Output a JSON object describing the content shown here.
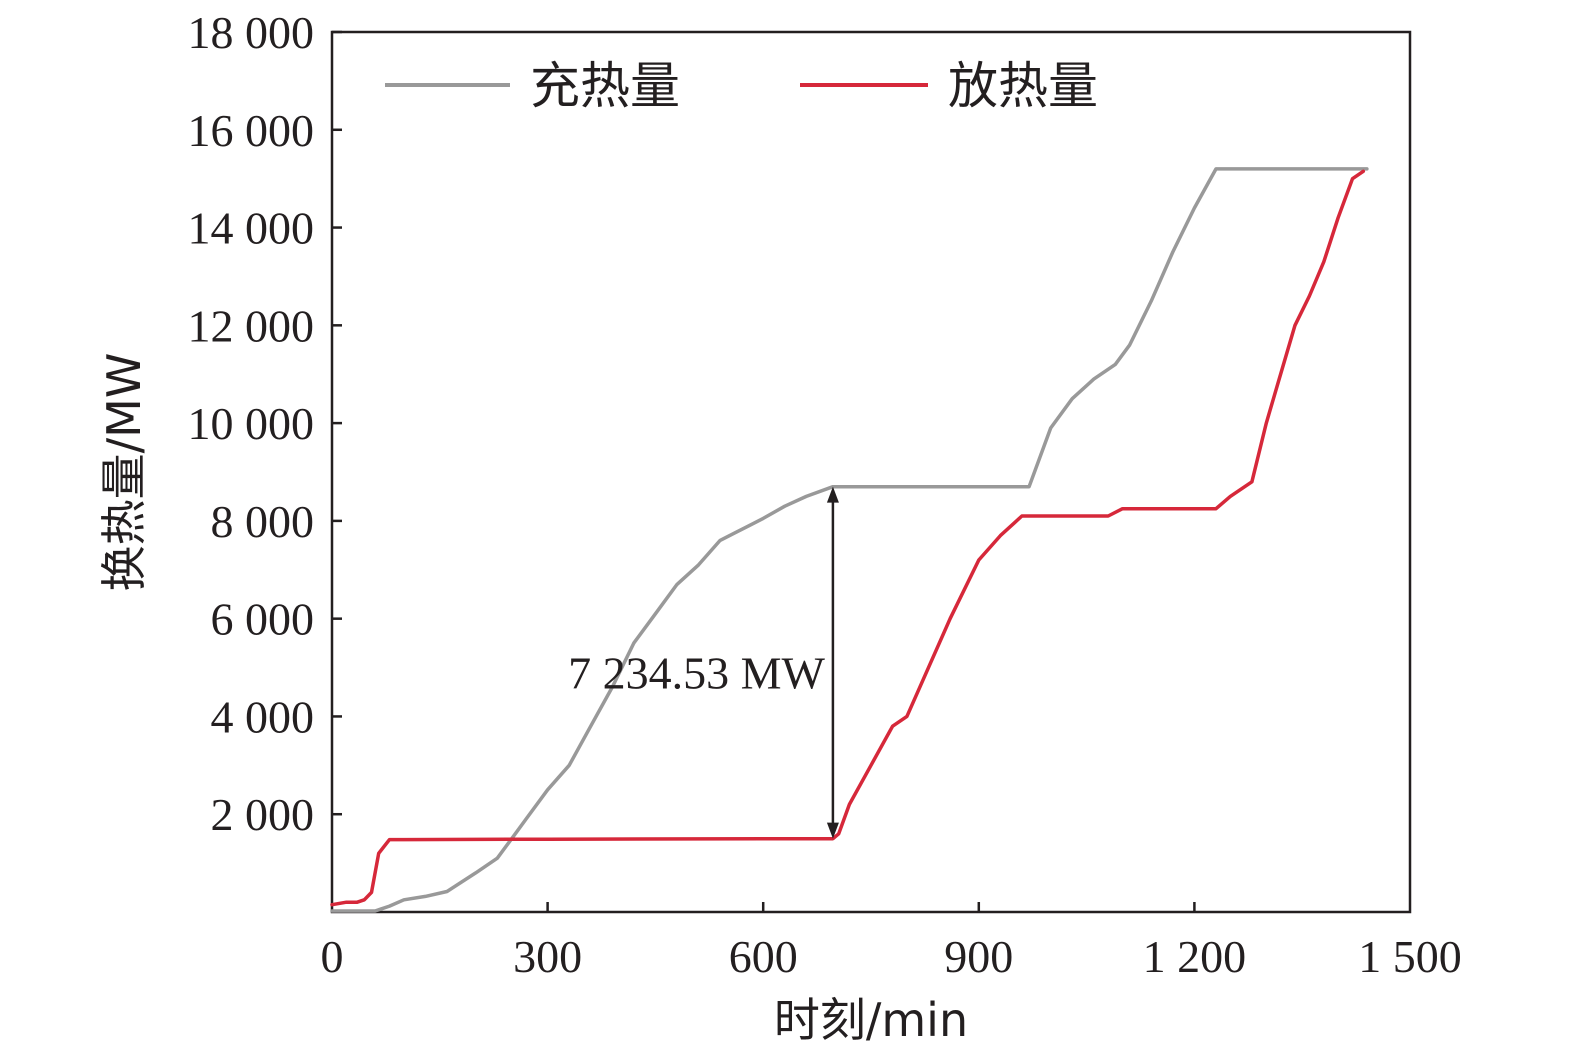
{
  "chart_data": {
    "type": "line",
    "title": "",
    "xlabel": "时刻/min",
    "ylabel": "换热量/MW",
    "xlim": [
      0,
      1500
    ],
    "ylim": [
      0,
      18000
    ],
    "x_ticks": [
      0,
      300,
      600,
      900,
      1200,
      1500
    ],
    "x_tick_labels": [
      "0",
      "300",
      "600",
      "900",
      "1 200",
      "1 500"
    ],
    "y_ticks": [
      2000,
      4000,
      6000,
      8000,
      10000,
      12000,
      14000,
      16000,
      18000
    ],
    "y_tick_labels": [
      "2 000",
      "4 000",
      "6 000",
      "8 000",
      "10 000",
      "12 000",
      "14 000",
      "16 000",
      "18 000"
    ],
    "grid": false,
    "legend_position": "top",
    "series": [
      {
        "name": "充热量",
        "color": "#999999",
        "x": [
          0,
          25,
          60,
          80,
          100,
          130,
          160,
          200,
          230,
          250,
          270,
          300,
          330,
          360,
          390,
          420,
          450,
          480,
          510,
          540,
          560,
          580,
          600,
          630,
          660,
          697,
          800,
          900,
          970,
          1000,
          1030,
          1060,
          1090,
          1110,
          1140,
          1170,
          1200,
          1230,
          1400,
          1440
        ],
        "y": [
          20,
          20,
          20,
          120,
          250,
          320,
          420,
          800,
          1100,
          1500,
          1900,
          2500,
          3000,
          3800,
          4600,
          5500,
          6100,
          6700,
          7100,
          7600,
          7750,
          7900,
          8050,
          8300,
          8500,
          8700,
          8700,
          8700,
          8700,
          9900,
          10500,
          10900,
          11200,
          11600,
          12500,
          13500,
          14400,
          15200,
          15200,
          15200
        ]
      },
      {
        "name": "放热量",
        "color": "#d6283a",
        "x": [
          0,
          20,
          35,
          45,
          55,
          65,
          80,
          100,
          300,
          600,
          697,
          705,
          720,
          750,
          780,
          800,
          830,
          860,
          900,
          930,
          960,
          975,
          1000,
          1080,
          1100,
          1200,
          1230,
          1250,
          1280,
          1300,
          1320,
          1340,
          1360,
          1380,
          1400,
          1420,
          1435
        ],
        "y": [
          150,
          200,
          200,
          250,
          400,
          1200,
          1480,
          1480,
          1490,
          1500,
          1500,
          1600,
          2200,
          3000,
          3800,
          4000,
          5000,
          6000,
          7200,
          7700,
          8100,
          8100,
          8100,
          8100,
          8250,
          8250,
          8250,
          8500,
          8800,
          10000,
          11000,
          12000,
          12600,
          13300,
          14200,
          15000,
          15150
        ]
      }
    ],
    "annotations": [
      {
        "text": "7 234.53 MW",
        "x": 697,
        "y_from": 1500,
        "y_to": 8700
      }
    ]
  }
}
